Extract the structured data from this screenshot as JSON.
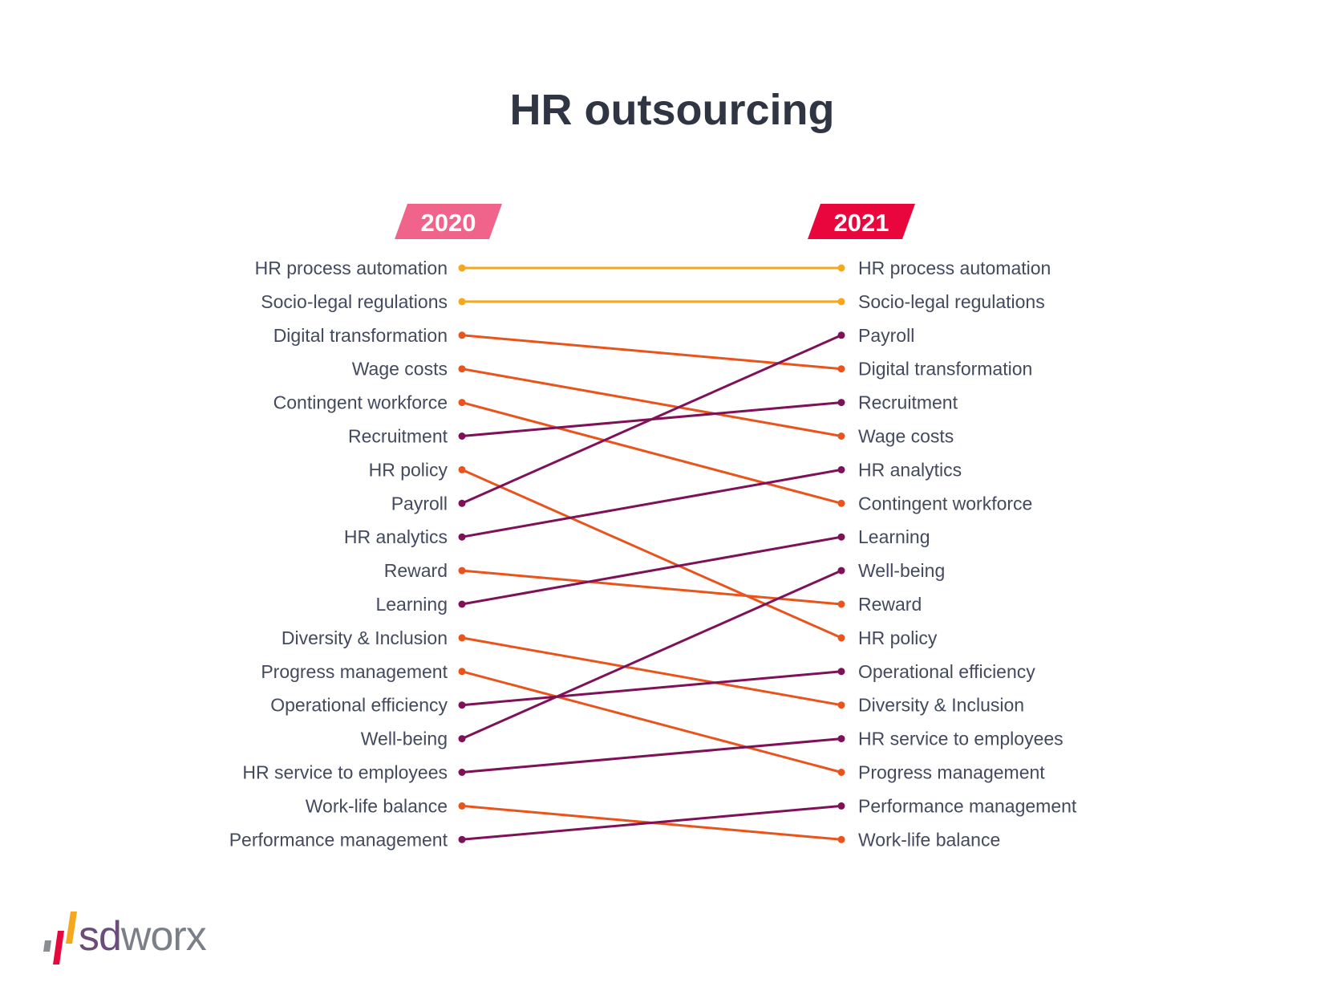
{
  "chart_data": {
    "type": "slope",
    "title": "HR outsourcing",
    "left_year": "2020",
    "right_year": "2021",
    "left_ranking": [
      "HR process automation",
      "Socio-legal regulations",
      "Digital transformation",
      "Wage costs",
      "Contingent workforce",
      "Recruitment",
      "HR policy",
      "Payroll",
      "HR analytics",
      "Reward",
      "Learning",
      "Diversity & Inclusion",
      "Progress management",
      "Operational efficiency",
      "Well-being",
      "HR service to employees",
      "Work-life balance",
      "Performance management"
    ],
    "right_ranking": [
      "HR process automation",
      "Socio-legal regulations",
      "Payroll",
      "Digital transformation",
      "Recruitment",
      "Wage costs",
      "HR analytics",
      "Contingent workforce",
      "Learning",
      "Well-being",
      "Reward",
      "HR policy",
      "Operational efficiency",
      "Diversity & Inclusion",
      "HR service to employees",
      "Progress management",
      "Performance management",
      "Work-life balance"
    ],
    "item_colors": {
      "HR process automation": "#f5a81c",
      "Socio-legal regulations": "#f5a81c",
      "Digital transformation": "#e8541b",
      "Wage costs": "#e8541b",
      "Contingent workforce": "#e8541b",
      "Recruitment": "#7e1157",
      "HR policy": "#e8541b",
      "Payroll": "#7e1157",
      "HR analytics": "#7e1157",
      "Reward": "#e8541b",
      "Learning": "#7e1157",
      "Diversity & Inclusion": "#e8541b",
      "Progress management": "#e8541b",
      "Operational efficiency": "#7e1157",
      "Well-being": "#7e1157",
      "HR service to employees": "#7e1157",
      "Work-life balance": "#e8541b",
      "Performance management": "#7e1157"
    }
  },
  "colors": {
    "title": "#2f3542",
    "label": "#434a5e",
    "left_year_badge": "#f0638b",
    "right_year_badge": "#e8063c",
    "logo_bar_1": "#8a8d94",
    "logo_bar_2": "#e8063c",
    "logo_bar_3": "#f5a81c"
  },
  "logo": {
    "part1": "sd",
    "part2": "worx"
  }
}
